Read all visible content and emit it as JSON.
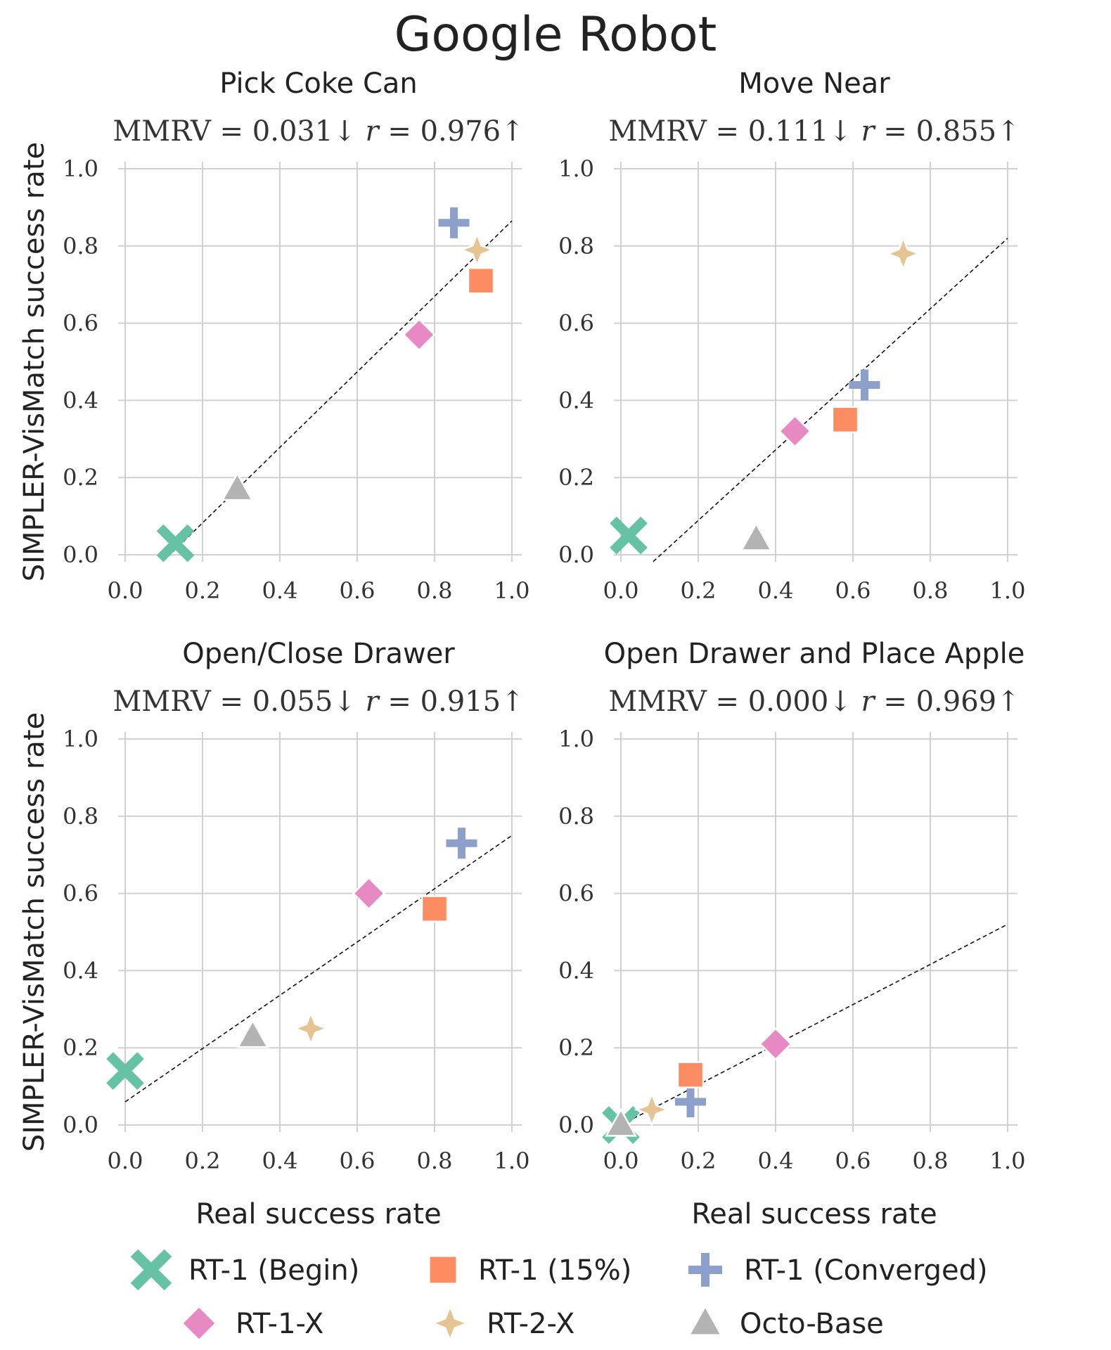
{
  "figure_title": "Google Robot",
  "legend": [
    {
      "key": "rt1_begin",
      "label": "RT-1 (Begin)",
      "marker": "x",
      "color": "#66c2a5"
    },
    {
      "key": "rt1_15",
      "label": "RT-1 (15%)",
      "marker": "square",
      "color": "#fc8d62"
    },
    {
      "key": "rt1_conv",
      "label": "RT-1 (Converged)",
      "marker": "plus",
      "color": "#8da0cb"
    },
    {
      "key": "rt1x",
      "label": "RT-1-X",
      "marker": "diamond",
      "color": "#e78ac3"
    },
    {
      "key": "rt2x",
      "label": "RT-2-X",
      "marker": "star4",
      "color": "#e5c494"
    },
    {
      "key": "octo",
      "label": "Octo-Base",
      "marker": "triangle",
      "color": "#b3b3b3"
    }
  ],
  "chart_data": [
    {
      "type": "scatter",
      "title": "Pick Coke Can",
      "metrics": {
        "mmrv": "0.031",
        "r": "0.976"
      },
      "xlabel": "",
      "ylabel": "SIMPLER-VisMatch success rate",
      "xlim": [
        0,
        1
      ],
      "ylim": [
        0,
        1
      ],
      "xticks": [
        "0.0",
        "0.2",
        "0.4",
        "0.6",
        "0.8",
        "1.0"
      ],
      "yticks": [
        "0.0",
        "0.2",
        "0.4",
        "0.6",
        "0.8",
        "1.0"
      ],
      "grid": true,
      "fit_line": {
        "x": [
          0.085,
          1.0
        ],
        "y": [
          -0.03,
          0.865
        ]
      },
      "points": [
        {
          "series": "rt1_begin",
          "x": 0.13,
          "y": 0.03
        },
        {
          "series": "octo",
          "x": 0.29,
          "y": 0.17
        },
        {
          "series": "rt1x",
          "x": 0.76,
          "y": 0.57
        },
        {
          "series": "rt1_15",
          "x": 0.92,
          "y": 0.71
        },
        {
          "series": "rt2x",
          "x": 0.91,
          "y": 0.79
        },
        {
          "series": "rt1_conv",
          "x": 0.85,
          "y": 0.86
        }
      ]
    },
    {
      "type": "scatter",
      "title": "Move Near",
      "metrics": {
        "mmrv": "0.111",
        "r": "0.855"
      },
      "xlabel": "",
      "ylabel": "",
      "xlim": [
        0,
        1
      ],
      "ylim": [
        0,
        1
      ],
      "xticks": [
        "0.0",
        "0.2",
        "0.4",
        "0.6",
        "0.8",
        "1.0"
      ],
      "yticks": [
        "0.0",
        "0.2",
        "0.4",
        "0.6",
        "0.8",
        "1.0"
      ],
      "grid": true,
      "fit_line": {
        "x": [
          0.07,
          1.0
        ],
        "y": [
          -0.03,
          0.82
        ]
      },
      "points": [
        {
          "series": "rt1_begin",
          "x": 0.02,
          "y": 0.05
        },
        {
          "series": "octo",
          "x": 0.35,
          "y": 0.04
        },
        {
          "series": "rt1x",
          "x": 0.45,
          "y": 0.32
        },
        {
          "series": "rt1_15",
          "x": 0.58,
          "y": 0.35
        },
        {
          "series": "rt1_conv",
          "x": 0.63,
          "y": 0.44
        },
        {
          "series": "rt2x",
          "x": 0.73,
          "y": 0.78
        }
      ]
    },
    {
      "type": "scatter",
      "title": "Open/Close Drawer",
      "metrics": {
        "mmrv": "0.055",
        "r": "0.915"
      },
      "xlabel": "Real success rate",
      "ylabel": "SIMPLER-VisMatch success rate",
      "xlim": [
        0,
        1
      ],
      "ylim": [
        0,
        1
      ],
      "xticks": [
        "0.0",
        "0.2",
        "0.4",
        "0.6",
        "0.8",
        "1.0"
      ],
      "yticks": [
        "0.0",
        "0.2",
        "0.4",
        "0.6",
        "0.8",
        "1.0"
      ],
      "grid": true,
      "fit_line": {
        "x": [
          0.0,
          1.0
        ],
        "y": [
          0.06,
          0.75
        ]
      },
      "points": [
        {
          "series": "rt1_begin",
          "x": 0.0,
          "y": 0.14
        },
        {
          "series": "octo",
          "x": 0.33,
          "y": 0.23
        },
        {
          "series": "rt2x",
          "x": 0.48,
          "y": 0.25
        },
        {
          "series": "rt1x",
          "x": 0.63,
          "y": 0.6
        },
        {
          "series": "rt1_15",
          "x": 0.8,
          "y": 0.56
        },
        {
          "series": "rt1_conv",
          "x": 0.87,
          "y": 0.73
        }
      ]
    },
    {
      "type": "scatter",
      "title": "Open Drawer and Place Apple",
      "metrics": {
        "mmrv": "0.000",
        "r": "0.969"
      },
      "xlabel": "Real success rate",
      "ylabel": "",
      "xlim": [
        0,
        1
      ],
      "ylim": [
        0,
        1
      ],
      "xticks": [
        "0.0",
        "0.2",
        "0.4",
        "0.6",
        "0.8",
        "1.0"
      ],
      "yticks": [
        "0.0",
        "0.2",
        "0.4",
        "0.6",
        "0.8",
        "1.0"
      ],
      "grid": true,
      "fit_line": {
        "x": [
          0.0,
          1.0
        ],
        "y": [
          0.0,
          0.52
        ]
      },
      "points": [
        {
          "series": "rt1_begin",
          "x": 0.0,
          "y": 0.0
        },
        {
          "series": "octo",
          "x": 0.0,
          "y": 0.0
        },
        {
          "series": "rt2x",
          "x": 0.08,
          "y": 0.04
        },
        {
          "series": "rt1_conv",
          "x": 0.18,
          "y": 0.06
        },
        {
          "series": "rt1_15",
          "x": 0.18,
          "y": 0.13
        },
        {
          "series": "rt1x",
          "x": 0.4,
          "y": 0.21
        }
      ]
    }
  ]
}
